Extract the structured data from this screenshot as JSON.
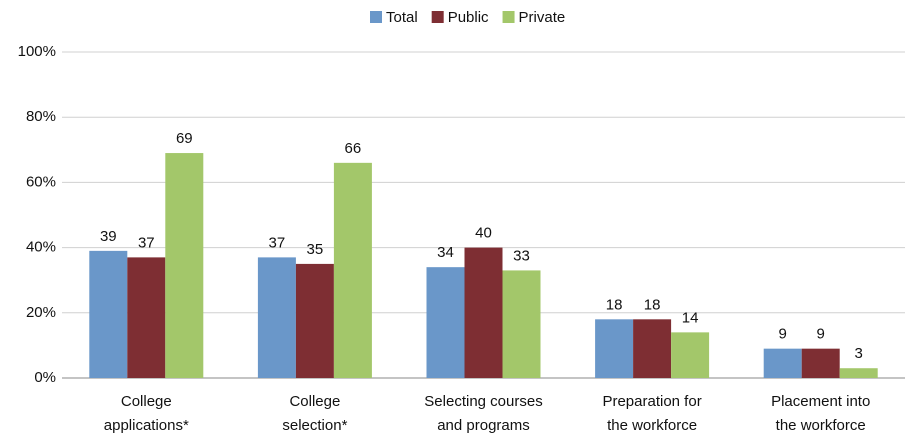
{
  "chart_data": {
    "type": "bar",
    "categories": [
      [
        "College",
        "applications*"
      ],
      [
        "College",
        "selection*"
      ],
      [
        "Selecting courses",
        "and programs"
      ],
      [
        "Preparation for",
        "the workforce"
      ],
      [
        "Placement into",
        "the workforce"
      ]
    ],
    "series": [
      {
        "name": "Total",
        "color": "#6a97c9",
        "values": [
          39,
          37,
          34,
          18,
          9
        ]
      },
      {
        "name": "Public",
        "color": "#7e2e33",
        "values": [
          37,
          35,
          40,
          18,
          9
        ]
      },
      {
        "name": "Private",
        "color": "#a3c76a",
        "values": [
          69,
          66,
          33,
          14,
          3
        ]
      }
    ],
    "ylim": [
      0,
      100
    ],
    "yticks": [
      {
        "value": 0,
        "label": "0%"
      },
      {
        "value": 20,
        "label": "20%"
      },
      {
        "value": 40,
        "label": "40%"
      },
      {
        "value": 60,
        "label": "60%"
      },
      {
        "value": 80,
        "label": "80%"
      },
      {
        "value": 100,
        "label": "100%"
      }
    ],
    "grid": true,
    "legend": "top"
  }
}
